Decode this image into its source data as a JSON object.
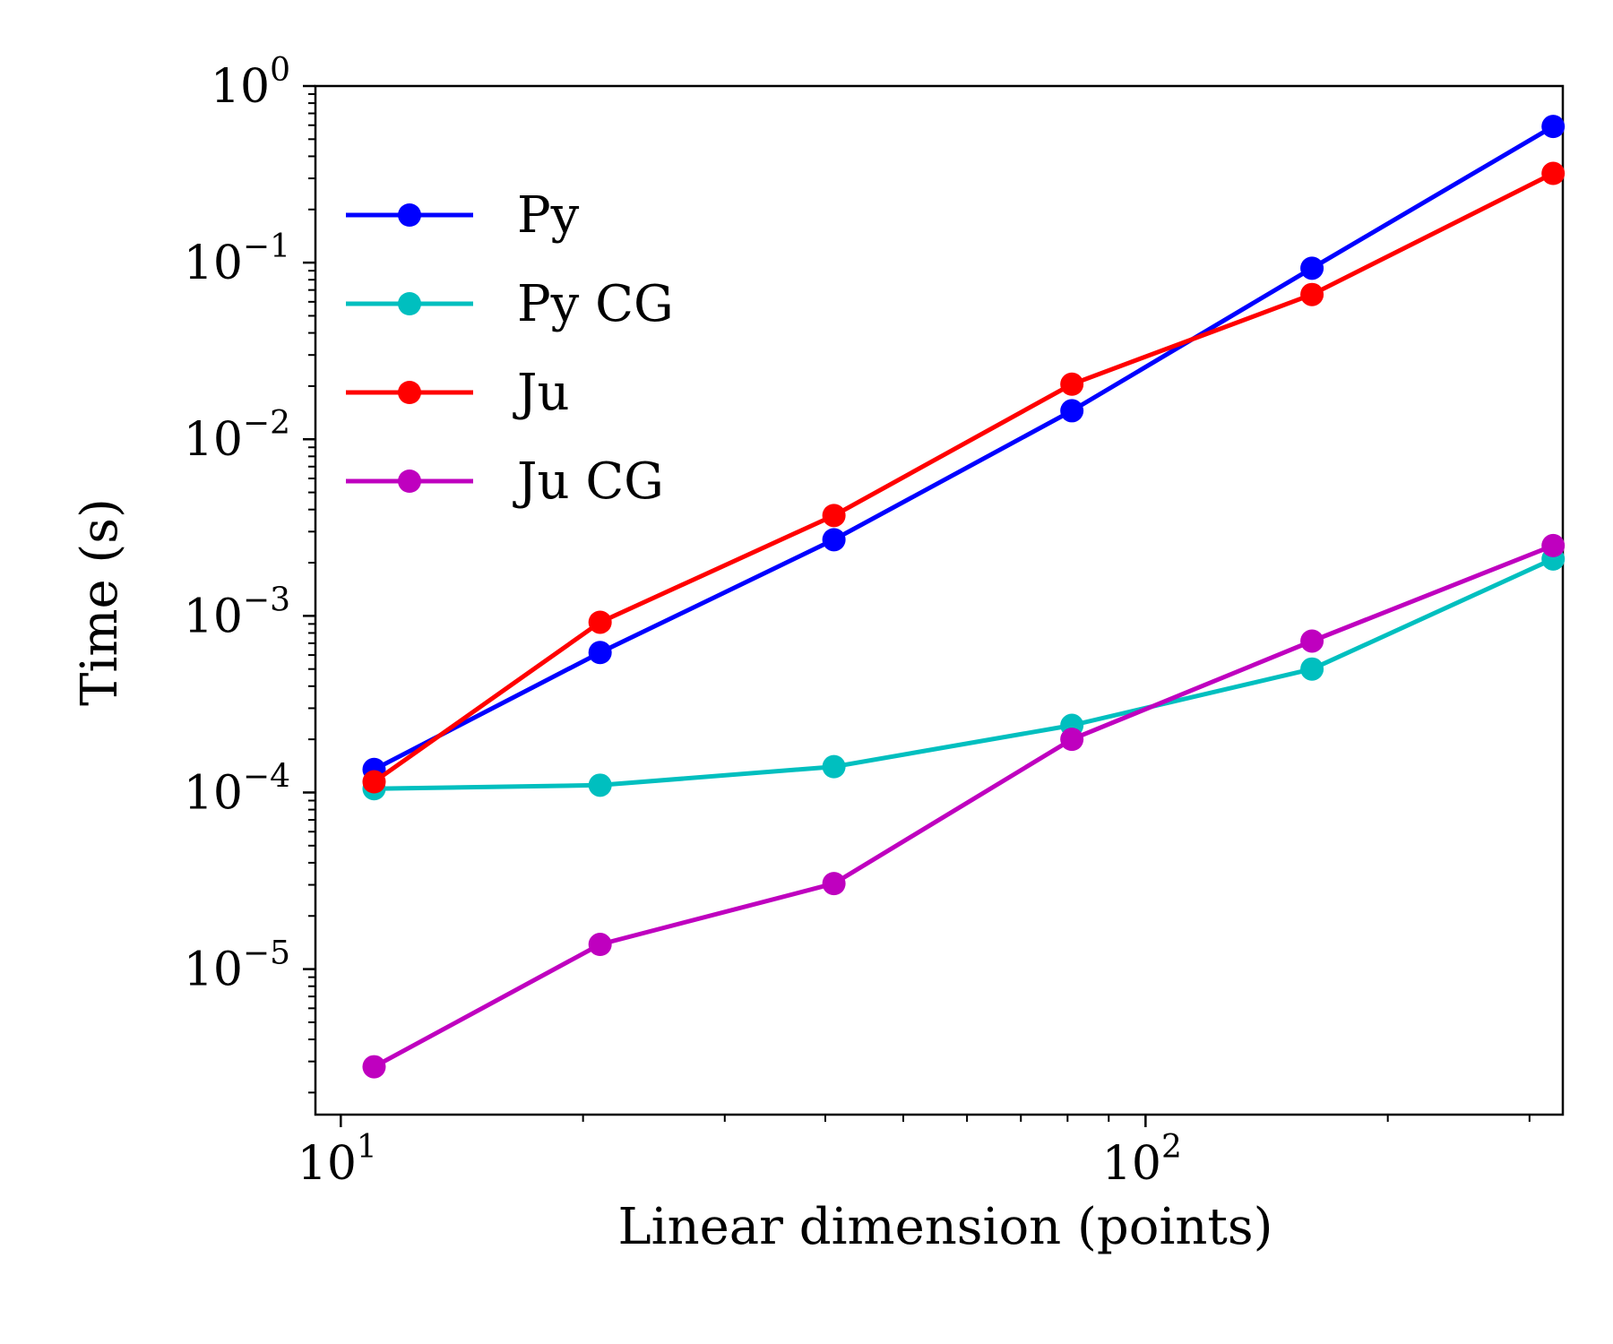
{
  "chart_data": {
    "type": "line",
    "xlabel": "Linear dimension (points)",
    "ylabel": "Time (s)",
    "xscale": "log",
    "yscale": "log",
    "xlim": [
      9.3,
      330
    ],
    "ylim": [
      1.5e-06,
      1.0
    ],
    "x_ticks": [
      {
        "value": 10,
        "base": "10",
        "exp": "1"
      },
      {
        "value": 100,
        "base": "10",
        "exp": "2"
      }
    ],
    "y_ticks": [
      {
        "value": 1,
        "base": "10",
        "exp": "0"
      },
      {
        "value": 0.1,
        "base": "10",
        "exp": "−1"
      },
      {
        "value": 0.01,
        "base": "10",
        "exp": "−2"
      },
      {
        "value": 0.001,
        "base": "10",
        "exp": "−3"
      },
      {
        "value": 0.0001,
        "base": "10",
        "exp": "−4"
      },
      {
        "value": 1e-05,
        "base": "10",
        "exp": "−5"
      }
    ],
    "grid": false,
    "legend_position": "upper-left",
    "x": [
      11,
      21,
      41,
      81,
      161,
      321
    ],
    "series": [
      {
        "name": "Py",
        "color": "#0000ff",
        "values": [
          0.000135,
          0.00062,
          0.0027,
          0.0145,
          0.093,
          0.59
        ]
      },
      {
        "name": "Py CG",
        "color": "#00bfbf",
        "values": [
          0.000105,
          0.00011,
          0.00014,
          0.00024,
          0.0005,
          0.0021
        ]
      },
      {
        "name": "Ju",
        "color": "#ff0000",
        "values": [
          0.000115,
          0.00092,
          0.0037,
          0.0205,
          0.066,
          0.32
        ]
      },
      {
        "name": "Ju CG",
        "color": "#bf00bf",
        "values": [
          2.8e-06,
          1.38e-05,
          3.05e-05,
          0.0002,
          0.00072,
          0.0025
        ]
      }
    ]
  }
}
